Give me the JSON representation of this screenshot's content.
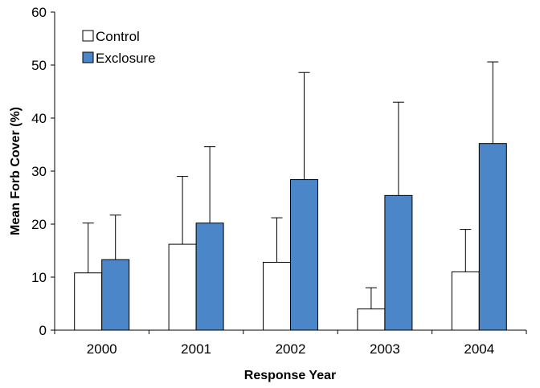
{
  "chart_data": {
    "type": "bar",
    "title": "",
    "xlabel": "Response Year",
    "ylabel": "Mean Forb Cover (%)",
    "ylim": [
      0,
      60
    ],
    "yticks": [
      "0",
      "10",
      "20",
      "30",
      "40",
      "50",
      "60"
    ],
    "categories": [
      "2000",
      "2001",
      "2002",
      "2003",
      "2004"
    ],
    "series": [
      {
        "name": "Control",
        "color": "#ffffff",
        "values": [
          10.8,
          16.2,
          12.8,
          4.0,
          11.0
        ],
        "error_upper": [
          20.2,
          29.0,
          21.2,
          8.0,
          19.0
        ]
      },
      {
        "name": "Exclosure",
        "color": "#4a86c8",
        "values": [
          13.3,
          20.2,
          28.4,
          25.4,
          35.2
        ],
        "error_upper": [
          21.7,
          34.6,
          48.6,
          43.0,
          50.6
        ]
      }
    ],
    "grid": false,
    "legend_position": "top-left"
  }
}
